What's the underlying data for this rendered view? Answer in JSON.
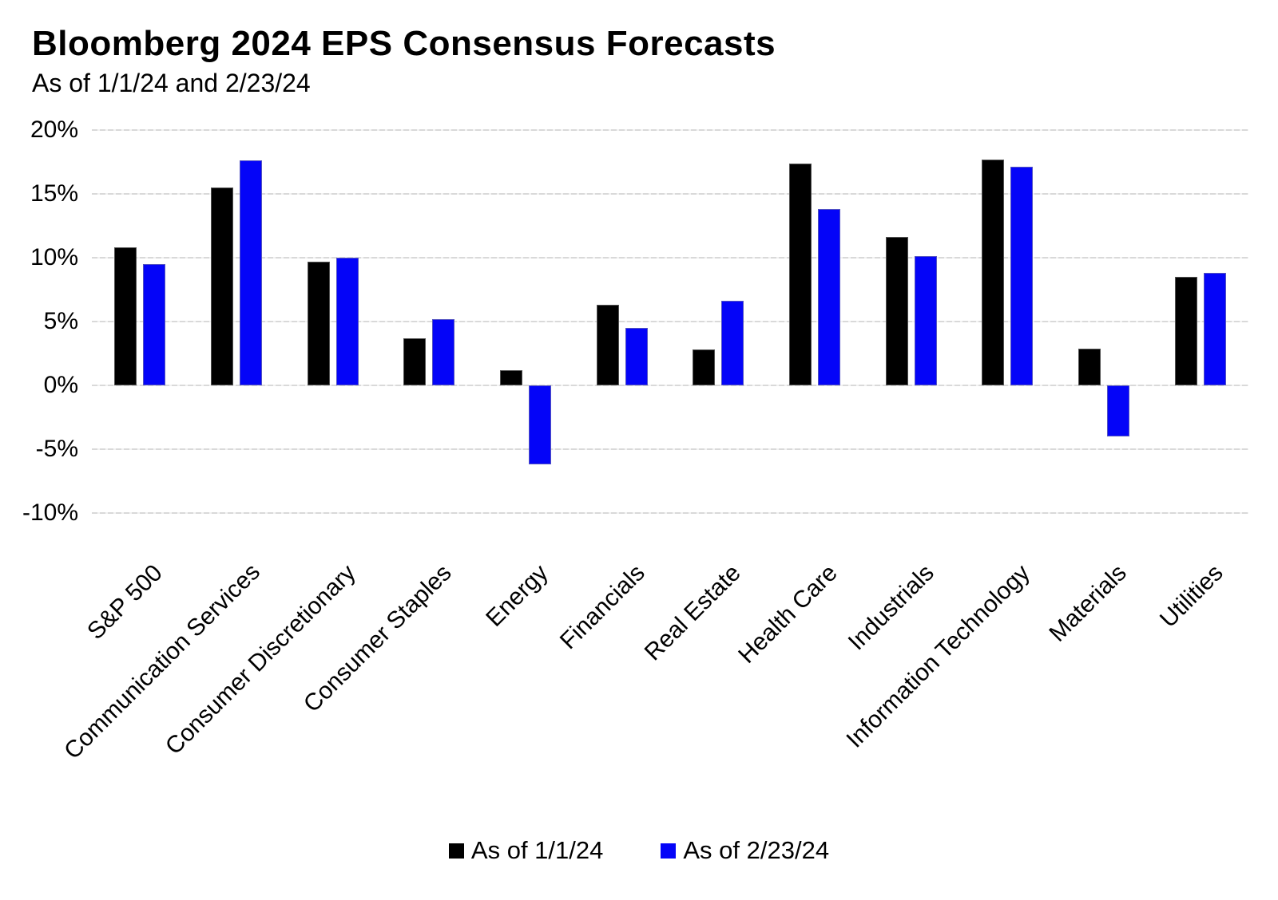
{
  "chart_data": {
    "type": "bar",
    "title": "Bloomberg 2024 EPS Consensus Forecasts",
    "subtitle": "As of 1/1/24 and 2/23/24",
    "categories": [
      "S&P 500",
      "Communication Services",
      "Consumer Discretionary",
      "Consumer Staples",
      "Energy",
      "Financials",
      "Real Estate",
      "Health Care",
      "Industrials",
      "Information Technology",
      "Materials",
      "Utilities"
    ],
    "series": [
      {
        "name": "As of 1/1/24",
        "color": "#000000",
        "values": [
          10.8,
          15.5,
          9.7,
          3.7,
          1.2,
          6.3,
          2.8,
          17.4,
          11.6,
          17.7,
          2.9,
          8.5
        ]
      },
      {
        "name": "As of 2/23/24",
        "color": "#0404f8",
        "values": [
          9.5,
          17.6,
          10.0,
          5.2,
          -6.2,
          4.5,
          6.6,
          13.8,
          10.1,
          17.1,
          -4.0,
          8.8
        ]
      }
    ],
    "xlabel": "",
    "ylabel": "",
    "ylim": [
      -10,
      20
    ],
    "yticks": [
      20,
      15,
      10,
      5,
      0,
      -5,
      -10
    ],
    "ytick_labels": [
      "20%",
      "15%",
      "10%",
      "5%",
      "0%",
      "-5%",
      "-10%"
    ],
    "grid": true,
    "gridline_color": "#d9d9d9",
    "legend_position": "bottom"
  },
  "legend": {
    "items": [
      {
        "label": "As of 1/1/24",
        "color": "#000000"
      },
      {
        "label": "As of 2/23/24",
        "color": "#0404f8"
      }
    ]
  }
}
